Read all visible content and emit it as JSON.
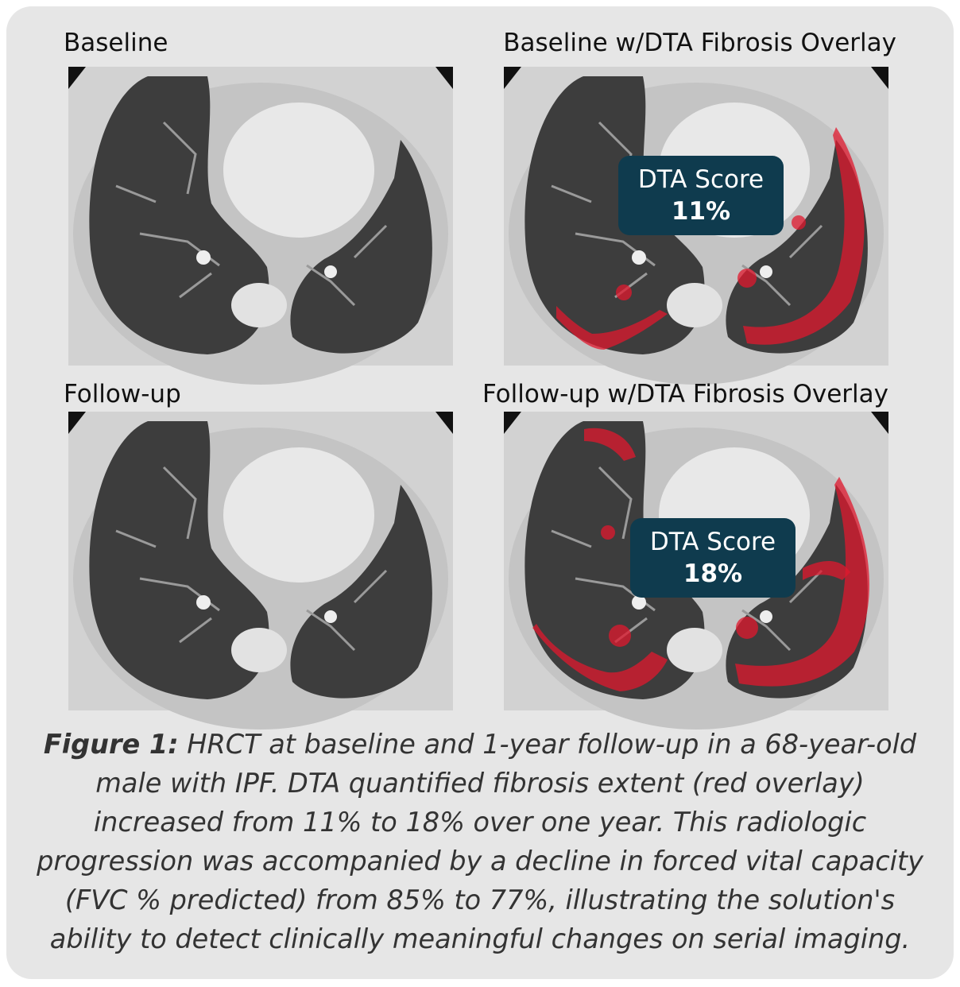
{
  "panels": [
    {
      "label": "Baseline"
    },
    {
      "label": "Baseline w/DTA Fibrosis Overlay",
      "score_label": "DTA Score",
      "score": "11%"
    },
    {
      "label": "Follow-up"
    },
    {
      "label": "Follow-up w/DTA Fibrosis Overlay",
      "score_label": "DTA Score",
      "score": "18%"
    }
  ],
  "caption": {
    "label": "Figure 1:",
    "text": "HRCT at baseline and 1-year follow-up in a 68-year-old male with IPF. DTA quantified fibrosis extent (red overlay) increased from 11% to 18% over one year. This radiologic progression was accompanied by a decline in forced vital capacity (FVC % predicted) from 85% to 77%, illustrating the solution's ability to detect clinically meaningful changes on serial imaging."
  }
}
